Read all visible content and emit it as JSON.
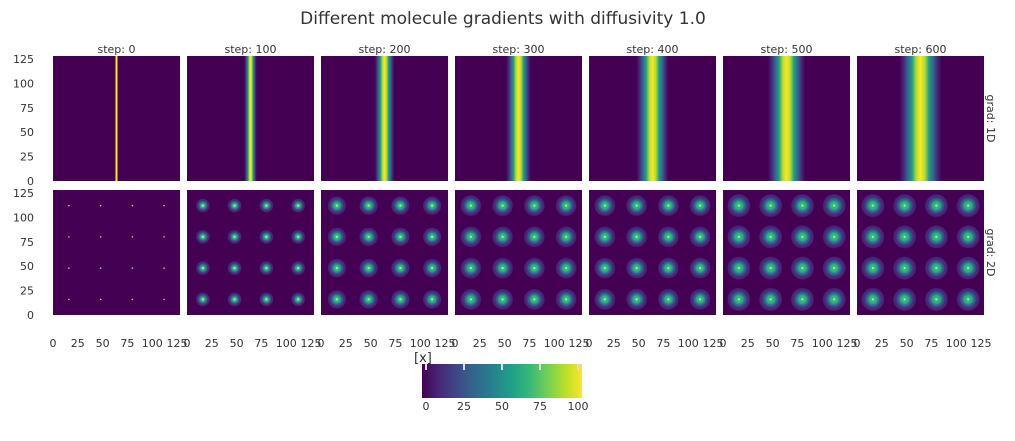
{
  "chart_data": {
    "type": "heatmap",
    "title": "Different molecule gradients with diffusivity 1.0",
    "column_labels": [
      "step: 0",
      "step: 100",
      "step: 200",
      "step: 300",
      "step: 400",
      "step: 500",
      "step: 600"
    ],
    "steps": [
      0,
      100,
      200,
      300,
      400,
      500,
      600
    ],
    "row_labels": [
      "grad: 1D",
      "grad: 2D"
    ],
    "x_ticks": [
      "0",
      "25",
      "50",
      "75",
      "100",
      "125"
    ],
    "y_ticks": [
      "0",
      "25",
      "50",
      "75",
      "100",
      "125"
    ],
    "xlim": [
      0,
      128
    ],
    "ylim": [
      0,
      128
    ],
    "grad_1D": {
      "source_x": 64,
      "profile_width_by_step": [
        0.5,
        2.5,
        4,
        5,
        6.5,
        7.5,
        8.5
      ]
    },
    "grad_2D": {
      "source_positions": [
        16,
        48,
        80,
        112
      ],
      "spot_radius_by_step": [
        0.3,
        3,
        4,
        4.5,
        4.5,
        5,
        5
      ]
    },
    "colorbar": {
      "label": "[x]",
      "ticks": [
        "0",
        "25",
        "50",
        "75",
        "100"
      ],
      "range": [
        0,
        100
      ],
      "colormap": "viridis",
      "colors": [
        "#440154",
        "#482878",
        "#3e4989",
        "#31688e",
        "#26828e",
        "#1f9e89",
        "#35b779",
        "#6ece58",
        "#b5de2b",
        "#fde725"
      ]
    }
  }
}
